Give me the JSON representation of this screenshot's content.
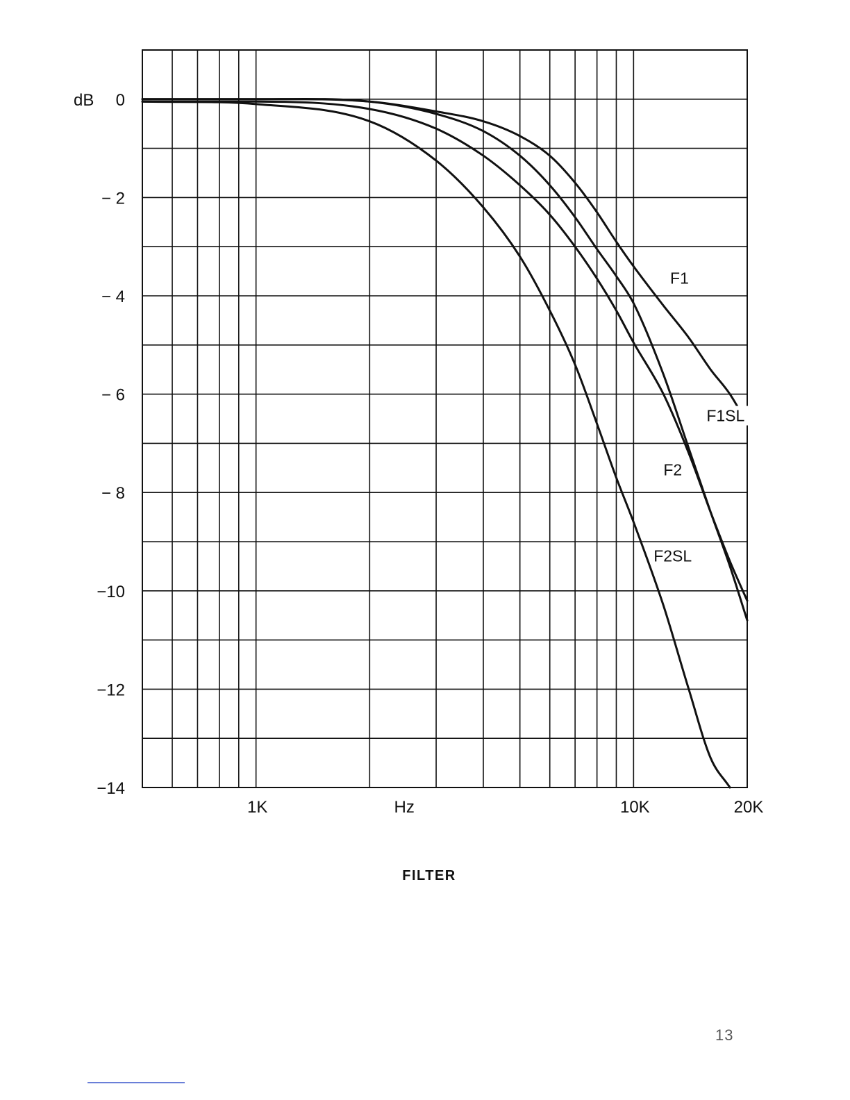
{
  "chart_data": {
    "type": "line",
    "xscale": "log",
    "xlim": [
      500,
      20000
    ],
    "ylim": [
      -14,
      1
    ],
    "ylabel": "dB",
    "xlabel": "Hz",
    "xtick_labels": [
      {
        "x": 1000,
        "label": "1K"
      },
      {
        "x": 10000,
        "label": "10K"
      },
      {
        "x": 20000,
        "label": "20K"
      }
    ],
    "yticks": [
      0,
      -2,
      -4,
      -6,
      -8,
      -10,
      -12,
      -14
    ],
    "ytick_labels": [
      "0",
      "− 2",
      "− 4",
      "− 6",
      "− 8",
      "−10",
      "−12",
      "−14"
    ],
    "grid": true,
    "series": [
      {
        "name": "F1",
        "x": [
          500,
          1000,
          2000,
          3000,
          4000,
          5000,
          6000,
          7000,
          8000,
          9000,
          10000,
          12000,
          14000,
          16000,
          18000,
          20000
        ],
        "y": [
          0,
          0,
          -0.05,
          -0.25,
          -0.45,
          -0.75,
          -1.15,
          -1.7,
          -2.3,
          -2.9,
          -3.4,
          -4.2,
          -4.85,
          -5.5,
          -6.0,
          -6.6
        ]
      },
      {
        "name": "F1SL",
        "x": [
          500,
          1000,
          2000,
          3000,
          4000,
          5000,
          6000,
          7000,
          8000,
          9000,
          10000,
          12000,
          14000,
          16000,
          18000,
          20000
        ],
        "y": [
          0,
          0,
          -0.05,
          -0.3,
          -0.65,
          -1.15,
          -1.75,
          -2.4,
          -3.05,
          -3.6,
          -4.15,
          -5.6,
          -7.1,
          -8.4,
          -9.5,
          -10.6
        ]
      },
      {
        "name": "F2",
        "x": [
          500,
          1000,
          2000,
          3000,
          4000,
          5000,
          6000,
          7000,
          8000,
          9000,
          10000,
          12000,
          14000,
          16000,
          18000,
          20000
        ],
        "y": [
          -0.05,
          -0.05,
          -0.2,
          -0.6,
          -1.15,
          -1.75,
          -2.35,
          -3.0,
          -3.65,
          -4.3,
          -4.95,
          -6.0,
          -7.2,
          -8.4,
          -9.4,
          -10.2
        ]
      },
      {
        "name": "F2SL",
        "x": [
          500,
          1000,
          2000,
          3000,
          4000,
          5000,
          6000,
          7000,
          8000,
          9000,
          10000,
          12000,
          14000,
          16000,
          18000
        ],
        "y": [
          -0.05,
          -0.1,
          -0.45,
          -1.25,
          -2.2,
          -3.2,
          -4.3,
          -5.4,
          -6.6,
          -7.7,
          -8.6,
          -10.3,
          -12.0,
          -13.4,
          -14.0
        ]
      }
    ],
    "series_labels": [
      {
        "name": "F1",
        "text": "F1"
      },
      {
        "name": "F1SL",
        "text": "F1SL"
      },
      {
        "name": "F2",
        "text": "F2"
      },
      {
        "name": "F2SL",
        "text": "F2SL"
      }
    ]
  },
  "caption": "FILTER",
  "page_number": "13"
}
